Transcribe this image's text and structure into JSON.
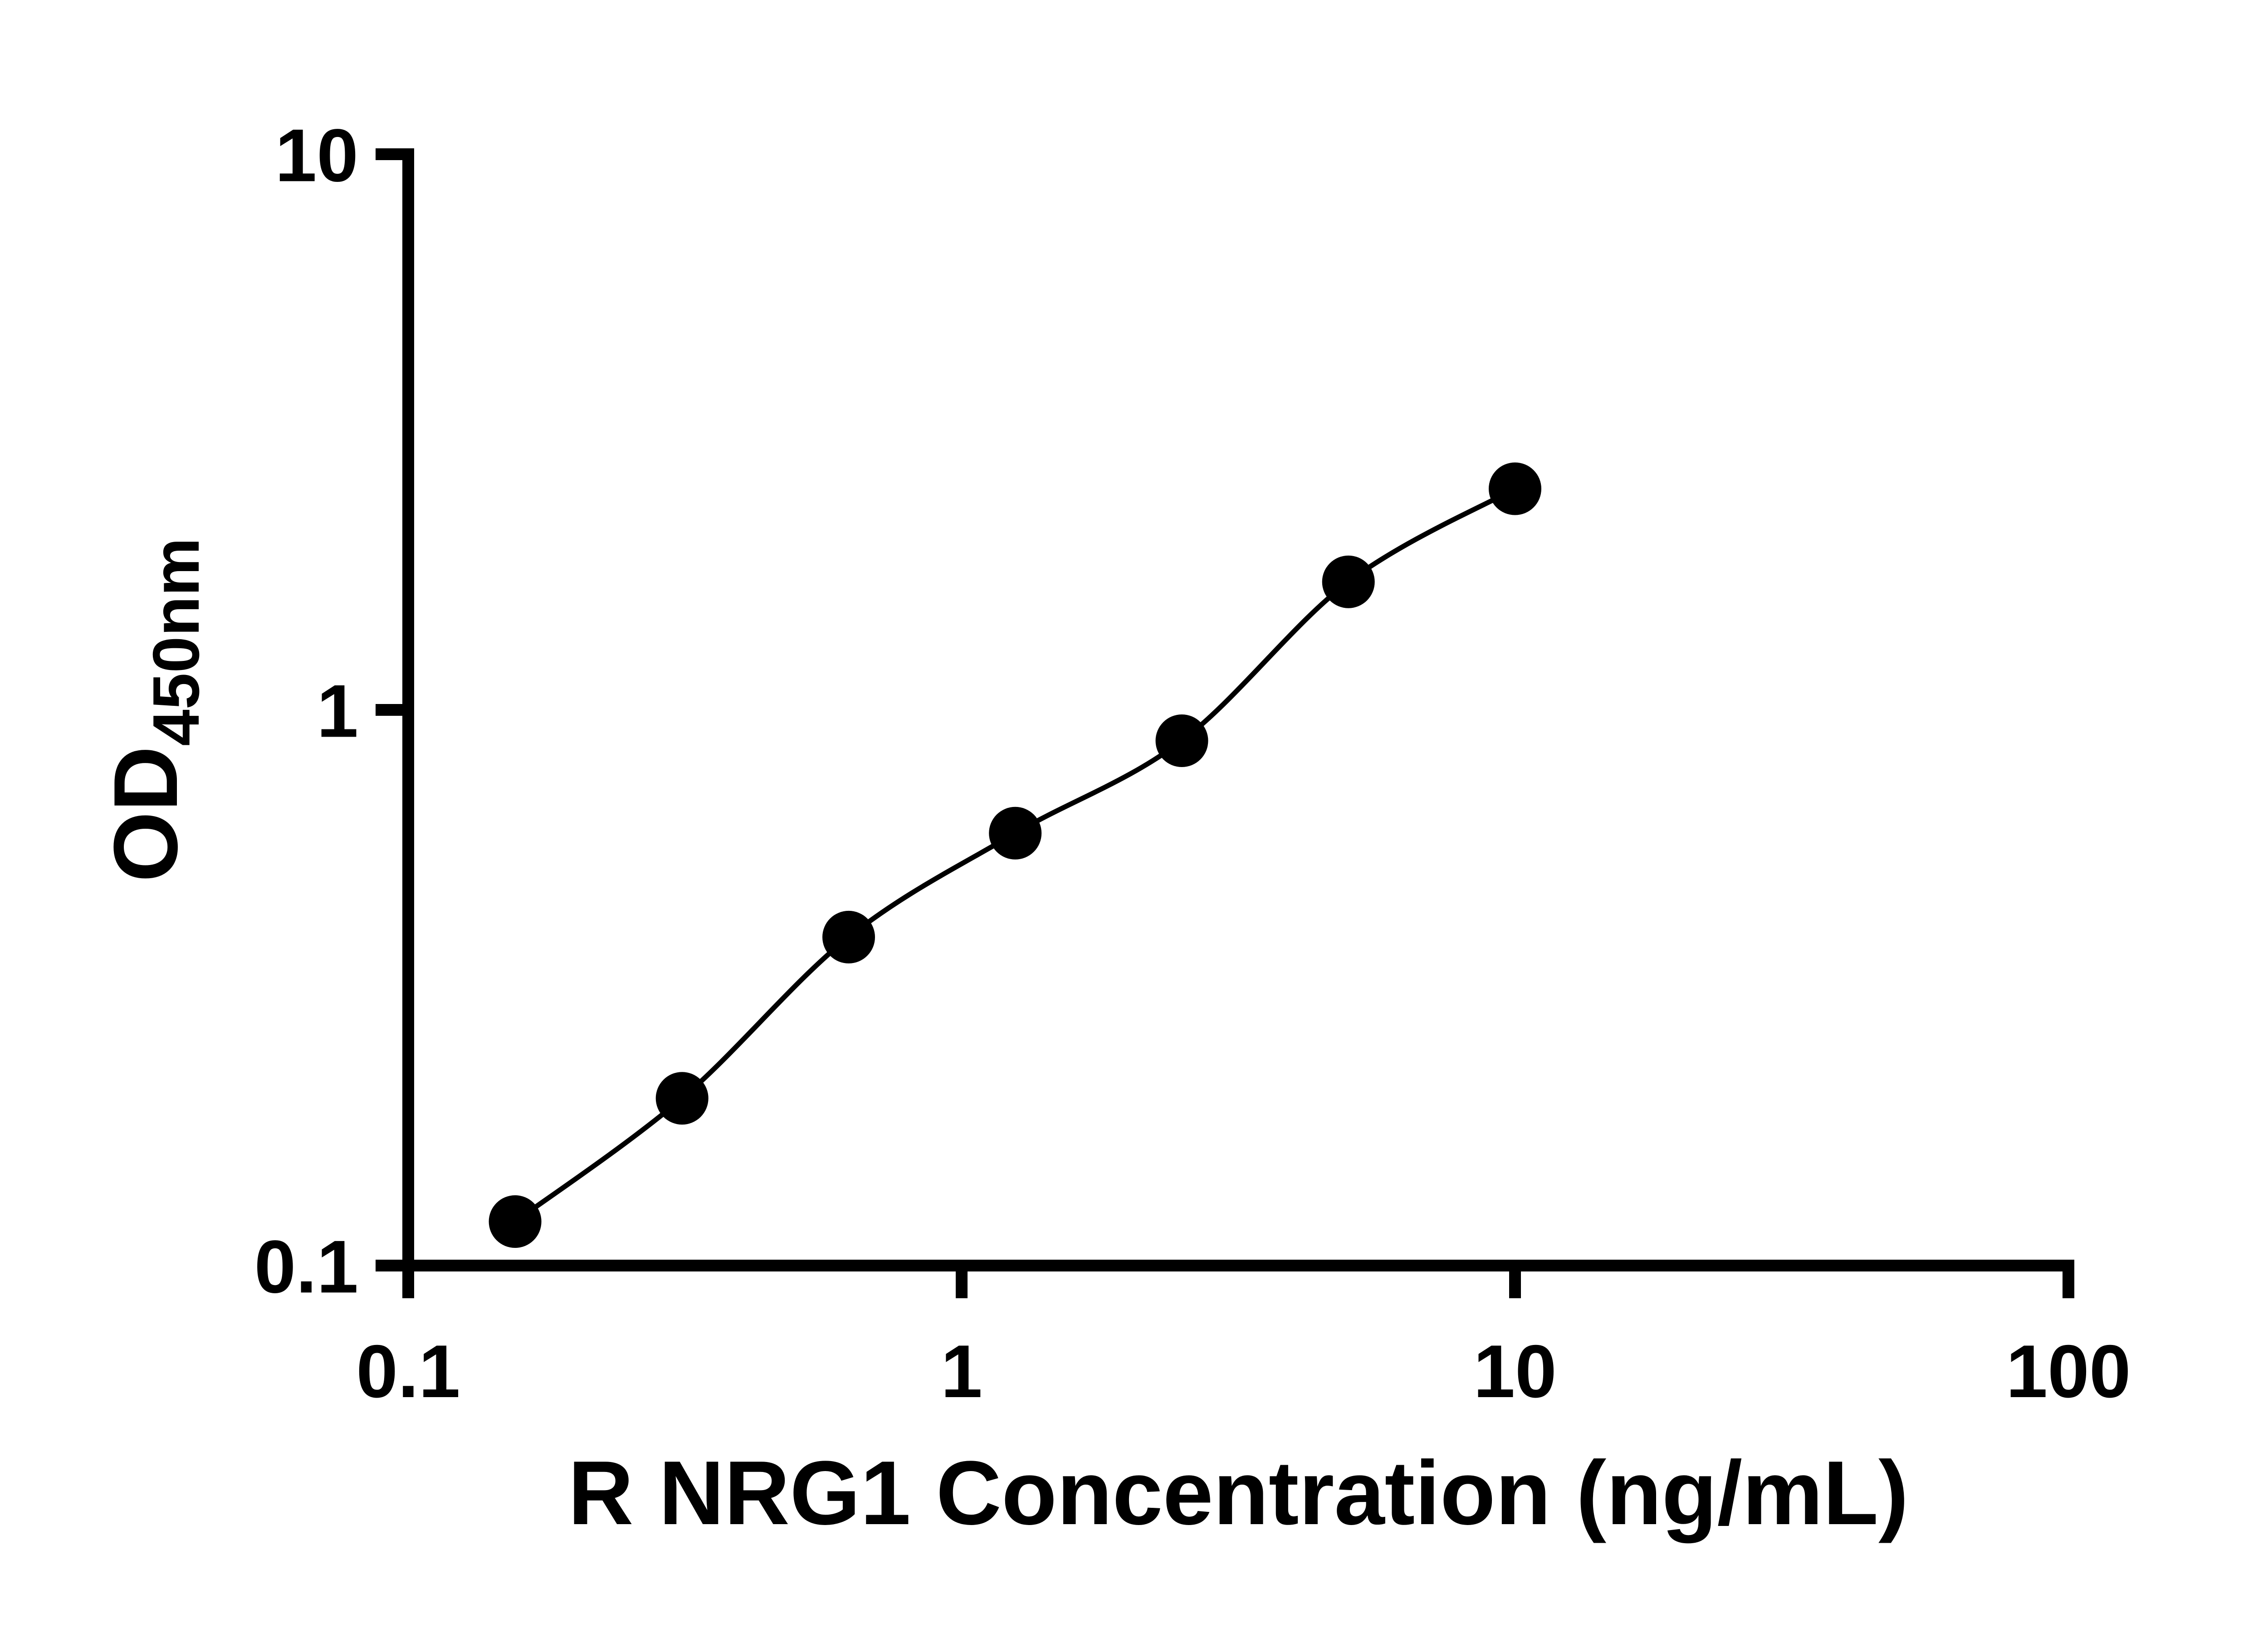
{
  "page": {
    "background": "#ffffff"
  },
  "chart": {
    "x_axis": {
      "label": "R NRG1 Concentration (ng/mL)",
      "scale": "log10",
      "ticks": [
        0.1,
        1,
        10,
        100
      ],
      "tick_labels": [
        "0.1",
        "1",
        "10",
        "100"
      ]
    },
    "y_axis": {
      "label_main": "OD",
      "label_sub": "450nm",
      "scale": "log10",
      "ticks": [
        0.1,
        1,
        10
      ],
      "tick_labels": [
        "0.1",
        "1",
        "10"
      ]
    },
    "colors": {
      "axis": "#000000",
      "marker": "#000000",
      "line": "#000000",
      "text": "#000000",
      "background": "#ffffff"
    }
  },
  "chart_data": {
    "type": "scatter",
    "title": "",
    "xlabel": "R NRG1 Concentration (ng/mL)",
    "ylabel": "OD450nm",
    "x_scale": "log",
    "y_scale": "log",
    "xlim": [
      0.1,
      100
    ],
    "ylim": [
      0.1,
      10
    ],
    "x": [
      0.156,
      0.3125,
      0.625,
      1.25,
      2.5,
      5,
      10
    ],
    "y": [
      0.12,
      0.2,
      0.39,
      0.6,
      0.88,
      1.7,
      2.5
    ],
    "marker": "filled-circle",
    "line": "smooth-fit",
    "legend": "none",
    "grid": "off"
  }
}
